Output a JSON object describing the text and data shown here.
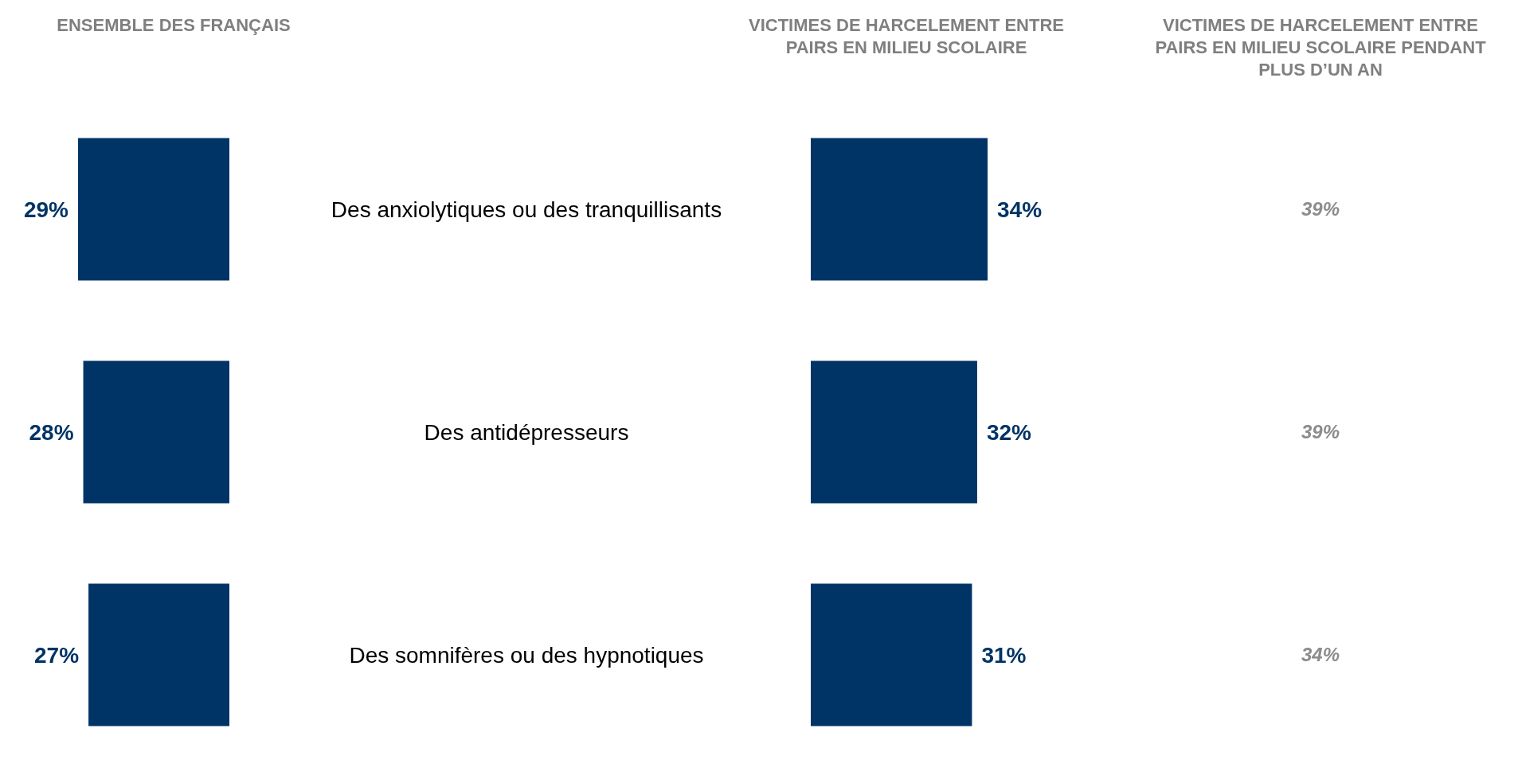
{
  "chart_data": [
    {
      "type": "bar",
      "orientation": "horizontal",
      "title": "ENSEMBLE DES FRANÇAIS",
      "categories": [
        "Des anxiolytiques ou des tranquillisants",
        "Des antidépresseurs",
        "Des somnifères ou des hypnotiques"
      ],
      "values": [
        29,
        28,
        27
      ],
      "value_labels": [
        "29%",
        "28%",
        "27%"
      ],
      "color": "#003466",
      "tick_labels": "y"
    },
    {
      "type": "bar",
      "orientation": "horizontal",
      "title": "VICTIMES DE HARCELEMENT ENTRE PAIRS EN MILIEU SCOLAIRE",
      "categories": [
        null,
        null,
        null
      ],
      "values": [
        34,
        32,
        31
      ],
      "value_labels": [
        "34%",
        "32%",
        "31%"
      ],
      "color": "#003466",
      "tick_labels": false
    },
    {
      "type": "other",
      "title": "VICTIMES DE HARCELEMENT ENTRE PAIRS EN MILIEU SCOLAIRE PENDANT PLUS D’UN AN",
      "annotations": [
        "39%",
        "39%",
        "34%"
      ]
    }
  ]
}
